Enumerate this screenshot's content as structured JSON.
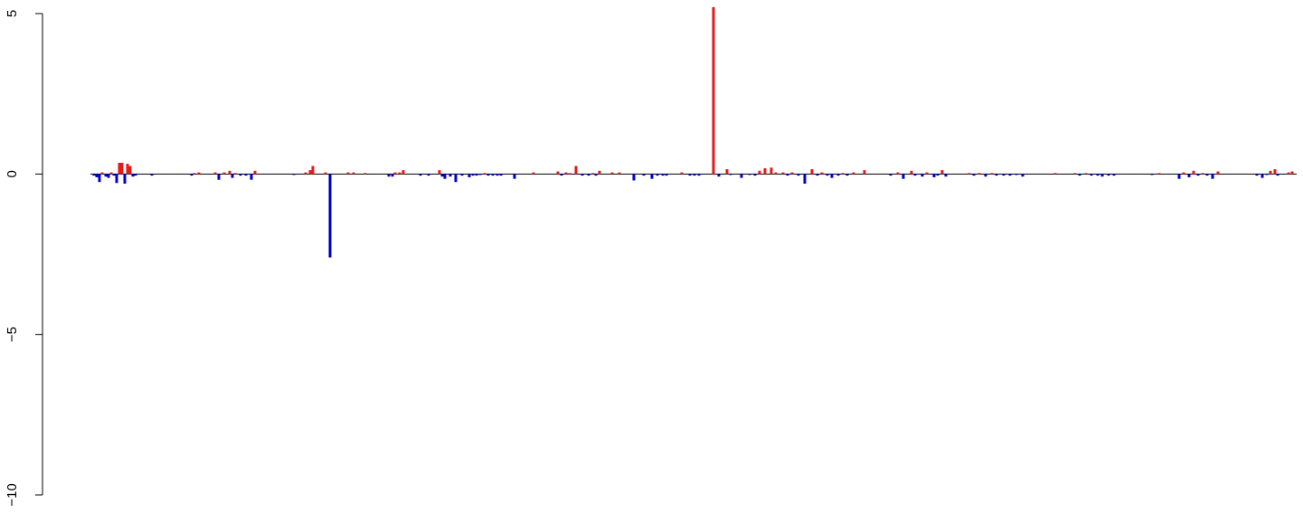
{
  "chart_data": {
    "type": "bar",
    "title": "",
    "xlabel": "",
    "ylabel": "",
    "ylim": [
      -10,
      5
    ],
    "yticks": [
      5,
      0,
      -5,
      -10
    ],
    "ytick_labels": [
      "5",
      "0",
      "−5",
      "−10"
    ],
    "grid": false,
    "legend": "none",
    "baseline": 0,
    "colors": {
      "positive": "#e41a1c",
      "negative": "#0000cc",
      "axis": "#000000",
      "baseline": "#000000"
    },
    "bars": [
      {
        "x": 104,
        "v": -0.05
      },
      {
        "x": 107,
        "v": -0.1
      },
      {
        "x": 110,
        "v": -0.25
      },
      {
        "x": 113,
        "v": 0.05
      },
      {
        "x": 117,
        "v": -0.08
      },
      {
        "x": 120,
        "v": -0.12
      },
      {
        "x": 123,
        "v": 0.05
      },
      {
        "x": 126,
        "v": -0.05
      },
      {
        "x": 129,
        "v": -0.28
      },
      {
        "x": 132,
        "v": 0.35
      },
      {
        "x": 135,
        "v": 0.35
      },
      {
        "x": 138,
        "v": -0.3
      },
      {
        "x": 141,
        "v": 0.32
      },
      {
        "x": 144,
        "v": 0.25
      },
      {
        "x": 147,
        "v": -0.08
      },
      {
        "x": 150,
        "v": -0.05
      },
      {
        "x": 168,
        "v": -0.05
      },
      {
        "x": 212,
        "v": -0.05
      },
      {
        "x": 215,
        "v": 0.03
      },
      {
        "x": 220,
        "v": 0.05
      },
      {
        "x": 238,
        "v": 0.05
      },
      {
        "x": 242,
        "v": -0.18
      },
      {
        "x": 248,
        "v": 0.05
      },
      {
        "x": 254,
        "v": 0.1
      },
      {
        "x": 257,
        "v": -0.12
      },
      {
        "x": 260,
        "v": 0.03
      },
      {
        "x": 266,
        "v": -0.05
      },
      {
        "x": 272,
        "v": -0.05
      },
      {
        "x": 278,
        "v": -0.18
      },
      {
        "x": 282,
        "v": 0.1
      },
      {
        "x": 325,
        "v": -0.03
      },
      {
        "x": 338,
        "v": 0.05
      },
      {
        "x": 343,
        "v": 0.12
      },
      {
        "x": 346,
        "v": 0.25
      },
      {
        "x": 360,
        "v": 0.05
      },
      {
        "x": 365,
        "v": -2.6
      },
      {
        "x": 385,
        "v": 0.05
      },
      {
        "x": 391,
        "v": 0.05
      },
      {
        "x": 404,
        "v": 0.03
      },
      {
        "x": 430,
        "v": -0.08
      },
      {
        "x": 434,
        "v": -0.08
      },
      {
        "x": 437,
        "v": 0.05
      },
      {
        "x": 442,
        "v": 0.05
      },
      {
        "x": 446,
        "v": 0.12
      },
      {
        "x": 465,
        "v": -0.05
      },
      {
        "x": 474,
        "v": -0.05
      },
      {
        "x": 486,
        "v": 0.12
      },
      {
        "x": 489,
        "v": -0.08
      },
      {
        "x": 492,
        "v": -0.15
      },
      {
        "x": 498,
        "v": -0.08
      },
      {
        "x": 504,
        "v": -0.25
      },
      {
        "x": 511,
        "v": -0.05
      },
      {
        "x": 519,
        "v": -0.1
      },
      {
        "x": 523,
        "v": -0.05
      },
      {
        "x": 527,
        "v": -0.05
      },
      {
        "x": 531,
        "v": -0.03
      },
      {
        "x": 536,
        "v": 0.03
      },
      {
        "x": 540,
        "v": -0.05
      },
      {
        "x": 545,
        "v": -0.05
      },
      {
        "x": 550,
        "v": -0.05
      },
      {
        "x": 554,
        "v": -0.05
      },
      {
        "x": 569,
        "v": -0.15
      },
      {
        "x": 590,
        "v": 0.05
      },
      {
        "x": 617,
        "v": 0.08
      },
      {
        "x": 621,
        "v": -0.05
      },
      {
        "x": 626,
        "v": 0.05
      },
      {
        "x": 630,
        "v": 0.03
      },
      {
        "x": 637,
        "v": 0.25
      },
      {
        "x": 644,
        "v": -0.05
      },
      {
        "x": 651,
        "v": -0.05
      },
      {
        "x": 656,
        "v": 0.03
      },
      {
        "x": 659,
        "v": -0.05
      },
      {
        "x": 663,
        "v": 0.1
      },
      {
        "x": 677,
        "v": 0.05
      },
      {
        "x": 685,
        "v": 0.05
      },
      {
        "x": 701,
        "v": -0.2
      },
      {
        "x": 712,
        "v": -0.05
      },
      {
        "x": 721,
        "v": -0.15
      },
      {
        "x": 727,
        "v": -0.05
      },
      {
        "x": 733,
        "v": -0.05
      },
      {
        "x": 737,
        "v": -0.05
      },
      {
        "x": 754,
        "v": 0.05
      },
      {
        "x": 763,
        "v": -0.05
      },
      {
        "x": 768,
        "v": -0.05
      },
      {
        "x": 773,
        "v": -0.05
      },
      {
        "x": 789,
        "v": 5.2
      },
      {
        "x": 795,
        "v": -0.08
      },
      {
        "x": 804,
        "v": 0.15
      },
      {
        "x": 808,
        "v": -0.03
      },
      {
        "x": 820,
        "v": -0.12
      },
      {
        "x": 829,
        "v": -0.03
      },
      {
        "x": 835,
        "v": -0.05
      },
      {
        "x": 840,
        "v": 0.1
      },
      {
        "x": 846,
        "v": 0.18
      },
      {
        "x": 853,
        "v": 0.2
      },
      {
        "x": 858,
        "v": 0.05
      },
      {
        "x": 866,
        "v": 0.05
      },
      {
        "x": 871,
        "v": -0.05
      },
      {
        "x": 876,
        "v": 0.05
      },
      {
        "x": 883,
        "v": -0.05
      },
      {
        "x": 890,
        "v": -0.3
      },
      {
        "x": 898,
        "v": 0.15
      },
      {
        "x": 904,
        "v": -0.05
      },
      {
        "x": 909,
        "v": 0.05
      },
      {
        "x": 915,
        "v": -0.05
      },
      {
        "x": 920,
        "v": -0.12
      },
      {
        "x": 927,
        "v": -0.05
      },
      {
        "x": 932,
        "v": 0.03
      },
      {
        "x": 937,
        "v": -0.05
      },
      {
        "x": 944,
        "v": 0.05
      },
      {
        "x": 956,
        "v": 0.12
      },
      {
        "x": 985,
        "v": -0.05
      },
      {
        "x": 993,
        "v": 0.05
      },
      {
        "x": 999,
        "v": -0.15
      },
      {
        "x": 1008,
        "v": 0.1
      },
      {
        "x": 1012,
        "v": -0.05
      },
      {
        "x": 1020,
        "v": -0.08
      },
      {
        "x": 1025,
        "v": 0.05
      },
      {
        "x": 1033,
        "v": -0.1
      },
      {
        "x": 1037,
        "v": -0.05
      },
      {
        "x": 1042,
        "v": 0.12
      },
      {
        "x": 1046,
        "v": -0.08
      },
      {
        "x": 1072,
        "v": 0.03
      },
      {
        "x": 1077,
        "v": -0.05
      },
      {
        "x": 1083,
        "v": 0.03
      },
      {
        "x": 1090,
        "v": -0.08
      },
      {
        "x": 1097,
        "v": 0.03
      },
      {
        "x": 1102,
        "v": -0.05
      },
      {
        "x": 1110,
        "v": -0.05
      },
      {
        "x": 1117,
        "v": -0.05
      },
      {
        "x": 1124,
        "v": -0.03
      },
      {
        "x": 1131,
        "v": -0.08
      },
      {
        "x": 1167,
        "v": 0.03
      },
      {
        "x": 1189,
        "v": 0.03
      },
      {
        "x": 1194,
        "v": -0.05
      },
      {
        "x": 1201,
        "v": 0.03
      },
      {
        "x": 1207,
        "v": -0.05
      },
      {
        "x": 1214,
        "v": -0.05
      },
      {
        "x": 1219,
        "v": -0.08
      },
      {
        "x": 1226,
        "v": -0.05
      },
      {
        "x": 1232,
        "v": -0.05
      },
      {
        "x": 1274,
        "v": -0.03
      },
      {
        "x": 1282,
        "v": 0.03
      },
      {
        "x": 1304,
        "v": -0.15
      },
      {
        "x": 1309,
        "v": 0.05
      },
      {
        "x": 1315,
        "v": -0.1
      },
      {
        "x": 1320,
        "v": 0.1
      },
      {
        "x": 1325,
        "v": -0.05
      },
      {
        "x": 1330,
        "v": 0.03
      },
      {
        "x": 1335,
        "v": -0.05
      },
      {
        "x": 1341,
        "v": -0.15
      },
      {
        "x": 1347,
        "v": 0.08
      },
      {
        "x": 1390,
        "v": -0.05
      },
      {
        "x": 1396,
        "v": -0.12
      },
      {
        "x": 1401,
        "v": -0.03
      },
      {
        "x": 1405,
        "v": 0.1
      },
      {
        "x": 1410,
        "v": 0.15
      },
      {
        "x": 1413,
        "v": -0.05
      },
      {
        "x": 1425,
        "v": 0.05
      },
      {
        "x": 1429,
        "v": 0.08
      }
    ]
  }
}
